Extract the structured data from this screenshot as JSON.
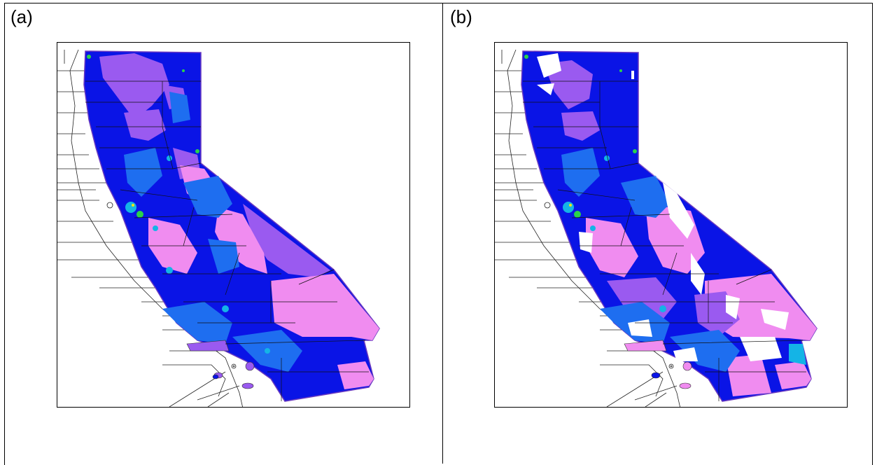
{
  "panels": [
    {
      "id": "a",
      "label": "(a)"
    },
    {
      "id": "b",
      "label": "(b)"
    }
  ],
  "colors": {
    "frame": "#000000",
    "background": "#ffffff",
    "dark_blue": "#0a14e6",
    "medium_blue": "#1e6ef0",
    "cyan": "#14b4e6",
    "purple": "#9a5af0",
    "pink": "#f08cf0",
    "green": "#2ad24a",
    "yellow": "#f0e614",
    "boundary": "#222222"
  }
}
